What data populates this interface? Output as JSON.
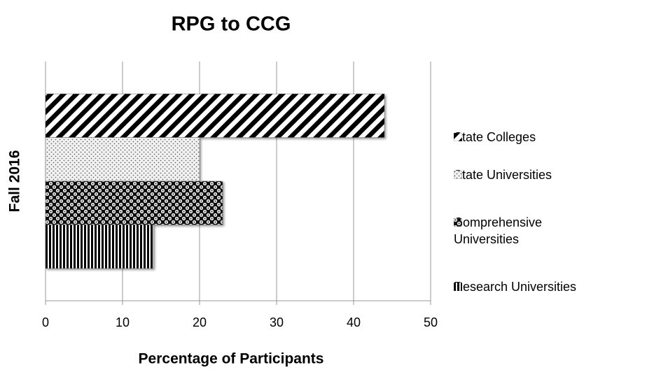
{
  "chart_data": {
    "type": "hbar",
    "title": "RPG to CCG",
    "x_label": "Percentage of Participants",
    "categories": [
      "Fall 2016"
    ],
    "series": [
      {
        "name": "State Colleges",
        "color": "#000000",
        "pattern": "diagonal",
        "values": [
          44
        ]
      },
      {
        "name": "State Universities",
        "color": "#000000",
        "pattern": "dots",
        "values": [
          20
        ]
      },
      {
        "name": "Comprehensive Universities",
        "color": "#000000",
        "pattern": "checker",
        "values": [
          23
        ]
      },
      {
        "name": "Research Universities",
        "color": "#000000",
        "pattern": "vertical",
        "values": [
          14
        ]
      }
    ],
    "xlim": [
      0,
      50
    ],
    "xticks": [
      0,
      10,
      20,
      30,
      40,
      50
    ],
    "grid": true,
    "legend": "right"
  }
}
